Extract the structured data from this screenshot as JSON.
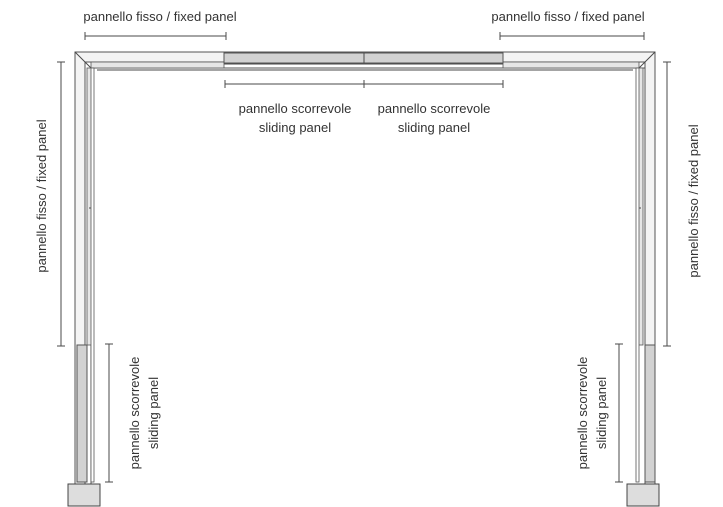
{
  "labels": {
    "top_left": "pannello fisso / fixed panel",
    "top_right": "pannello fisso / fixed panel",
    "center_left_line1": "pannello scorrevole",
    "center_left_line2": "sliding panel",
    "center_right_line1": "pannello scorrevole",
    "center_right_line2": "sliding panel",
    "left_vertical": "pannello fisso / fixed panel",
    "right_vertical": "pannello fisso / fixed panel",
    "left_bottom_line1": "pannello scorrevole",
    "left_bottom_line2": "sliding panel",
    "right_bottom_line1": "pannello scorrevole",
    "right_bottom_line2": "sliding panel"
  }
}
